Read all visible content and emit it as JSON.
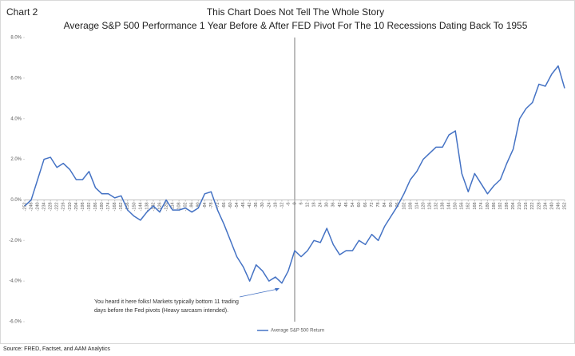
{
  "chart_data": {
    "type": "line",
    "label": "Chart 2",
    "title": "This Chart Does Not Tell The Whole Story",
    "subtitle": "Average S&P 500 Performance 1 Year Before & After FED Pivot For The 10 Recessions Dating Back To 1955",
    "source": "Source: FRED, Factset, and AAM Analytics",
    "annotation": [
      "You heard it here folks! Markets typically bottom 11 trading",
      "days before the Fed pivots (Heavy sarcasm intended)."
    ],
    "x": [
      -252,
      -246,
      -240,
      -234,
      -228,
      -222,
      -216,
      -210,
      -204,
      -198,
      -192,
      -186,
      -180,
      -174,
      -168,
      -162,
      -156,
      -150,
      -144,
      -138,
      -132,
      -126,
      -120,
      -114,
      -108,
      -102,
      -96,
      -90,
      -84,
      -78,
      -72,
      -66,
      -60,
      -54,
      -48,
      -42,
      -36,
      -30,
      -24,
      -18,
      -12,
      -6,
      0,
      6,
      12,
      18,
      24,
      30,
      36,
      42,
      48,
      54,
      60,
      66,
      72,
      78,
      84,
      90,
      96,
      102,
      108,
      114,
      120,
      126,
      132,
      138,
      144,
      150,
      156,
      162,
      168,
      174,
      180,
      186,
      192,
      198,
      204,
      210,
      216,
      222,
      228,
      234,
      240,
      246,
      252
    ],
    "series": [
      {
        "name": "Average S&P 500 Return",
        "color": "#4472c4",
        "values": [
          -0.3,
          0.0,
          1.0,
          2.0,
          2.1,
          1.6,
          1.8,
          1.5,
          1.0,
          1.0,
          1.4,
          0.6,
          0.3,
          0.3,
          0.1,
          0.2,
          -0.5,
          -0.8,
          -1.0,
          -0.6,
          -0.3,
          -0.6,
          0.0,
          -0.5,
          -0.5,
          -0.4,
          -0.6,
          -0.4,
          0.3,
          0.4,
          -0.5,
          -1.2,
          -2.0,
          -2.8,
          -3.3,
          -4.0,
          -3.2,
          -3.5,
          -4.0,
          -3.8,
          -4.1,
          -3.5,
          -2.5,
          -2.8,
          -2.5,
          -2.0,
          -2.1,
          -1.4,
          -2.2,
          -2.7,
          -2.5,
          -2.5,
          -2.0,
          -2.2,
          -1.7,
          -2.0,
          -1.3,
          -0.8,
          -0.3,
          0.3,
          1.0,
          1.4,
          2.0,
          2.3,
          2.6,
          2.6,
          3.2,
          3.4,
          1.3,
          0.4,
          1.3,
          0.8,
          0.3,
          0.7,
          1.0,
          1.8,
          2.5,
          4.0,
          4.5,
          4.8,
          5.7,
          5.6,
          6.2,
          6.6,
          5.5
        ]
      }
    ],
    "xlim": [
      -252,
      252
    ],
    "xticks": [
      -252,
      -246,
      -240,
      -234,
      -228,
      -222,
      -216,
      -210,
      -204,
      -198,
      -192,
      -186,
      -180,
      -174,
      -168,
      -162,
      -156,
      -150,
      -144,
      -138,
      -132,
      -126,
      -120,
      -114,
      -108,
      -102,
      -96,
      -90,
      -84,
      -78,
      -72,
      -66,
      -60,
      -54,
      -48,
      -42,
      -36,
      -30,
      -24,
      -18,
      -12,
      -6,
      0,
      6,
      12,
      18,
      24,
      30,
      36,
      42,
      48,
      54,
      60,
      66,
      72,
      78,
      84,
      90,
      96,
      102,
      108,
      114,
      120,
      126,
      132,
      138,
      144,
      150,
      156,
      162,
      168,
      174,
      180,
      186,
      192,
      198,
      204,
      210,
      216,
      222,
      228,
      234,
      240,
      246,
      252
    ],
    "ylim": [
      -6,
      8
    ],
    "yticks": [
      {
        "value": -6,
        "label": "-6.0%"
      },
      {
        "value": -4,
        "label": "-4.0%"
      },
      {
        "value": -2,
        "label": "-2.0%"
      },
      {
        "value": 0,
        "label": "0.0%"
      },
      {
        "value": 2,
        "label": "2.0%"
      },
      {
        "value": 4,
        "label": "4.0%"
      },
      {
        "value": 6,
        "label": "6.0%"
      },
      {
        "value": 8,
        "label": "8.0%"
      }
    ],
    "grid": false,
    "legend": "bottom"
  }
}
